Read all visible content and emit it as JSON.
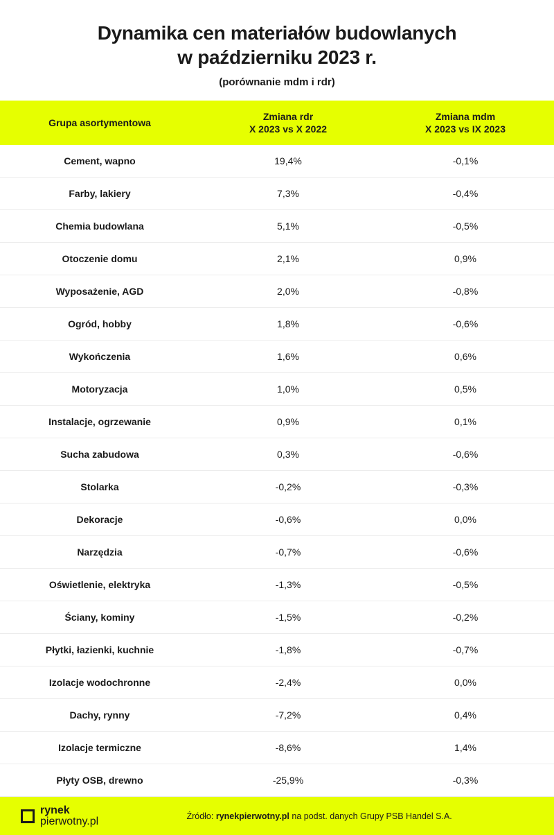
{
  "header": {
    "title_line1": "Dynamika cen materiałów budowlanych",
    "title_line2": "w październiku 2023 r.",
    "subtitle": "(porównanie mdm i rdr)"
  },
  "columns": {
    "c0": "Grupa asortymentowa",
    "c1_line1": "Zmiana rdr",
    "c1_line2": "X 2023 vs X 2022",
    "c2_line1": "Zmiana mdm",
    "c2_line2": "X 2023  vs IX 2023"
  },
  "rows": [
    {
      "label": "Cement, wapno",
      "rdr": "19,4%",
      "mdm": "-0,1%"
    },
    {
      "label": "Farby, lakiery",
      "rdr": "7,3%",
      "mdm": "-0,4%"
    },
    {
      "label": "Chemia budowlana",
      "rdr": "5,1%",
      "mdm": "-0,5%"
    },
    {
      "label": "Otoczenie domu",
      "rdr": "2,1%",
      "mdm": "0,9%"
    },
    {
      "label": "Wyposażenie, AGD",
      "rdr": "2,0%",
      "mdm": "-0,8%"
    },
    {
      "label": "Ogród, hobby",
      "rdr": "1,8%",
      "mdm": "-0,6%"
    },
    {
      "label": "Wykończenia",
      "rdr": "1,6%",
      "mdm": "0,6%"
    },
    {
      "label": "Motoryzacja",
      "rdr": "1,0%",
      "mdm": "0,5%"
    },
    {
      "label": "Instalacje, ogrzewanie",
      "rdr": "0,9%",
      "mdm": "0,1%"
    },
    {
      "label": "Sucha zabudowa",
      "rdr": "0,3%",
      "mdm": "-0,6%"
    },
    {
      "label": "Stolarka",
      "rdr": "-0,2%",
      "mdm": "-0,3%"
    },
    {
      "label": "Dekoracje",
      "rdr": "-0,6%",
      "mdm": "0,0%"
    },
    {
      "label": "Narzędzia",
      "rdr": "-0,7%",
      "mdm": "-0,6%"
    },
    {
      "label": "Oświetlenie, elektryka",
      "rdr": "-1,3%",
      "mdm": "-0,5%"
    },
    {
      "label": "Ściany, kominy",
      "rdr": "-1,5%",
      "mdm": "-0,2%"
    },
    {
      "label": "Płytki, łazienki, kuchnie",
      "rdr": "-1,8%",
      "mdm": "-0,7%"
    },
    {
      "label": "Izolacje wodochronne",
      "rdr": "-2,4%",
      "mdm": "0,0%"
    },
    {
      "label": "Dachy, rynny",
      "rdr": "-7,2%",
      "mdm": "0,4%"
    },
    {
      "label": "Izolacje termiczne",
      "rdr": "-8,6%",
      "mdm": "1,4%"
    },
    {
      "label": "Płyty OSB, drewno",
      "rdr": "-25,9%",
      "mdm": "-0,3%"
    }
  ],
  "footer": {
    "logo_bold": "rynek",
    "logo_rest": "pierwotny",
    "logo_tld": ".pl",
    "source_prefix": "Źródło: ",
    "source_bold": "rynekpierwotny.pl",
    "source_rest": " na podst. danych Grupy PSB Handel S.A."
  },
  "style": {
    "accent_color": "#e6ff00",
    "text_color": "#1a1a1a",
    "row_border": "#ececec",
    "background": "#ffffff",
    "title_fontsize": 28,
    "body_fontsize": 14
  }
}
